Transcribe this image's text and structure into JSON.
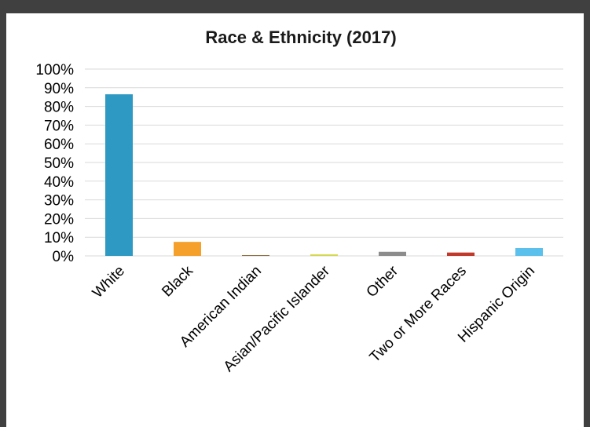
{
  "chart_data": {
    "type": "bar",
    "title": "Race & Ethnicity (2017)",
    "xlabel": "",
    "ylabel": "",
    "categories": [
      "White",
      "Black",
      "American Indian",
      "Asian/Pacific Islander",
      "Other",
      "Two or More Races",
      "Hispanic Origin"
    ],
    "values": [
      86.5,
      7.5,
      0.4,
      0.8,
      2.2,
      1.8,
      4.2
    ],
    "colors": [
      "#2e9ac4",
      "#f5a02a",
      "#8a6a3a",
      "#d6d84a",
      "#8c8c8c",
      "#c0392b",
      "#5bc1ec"
    ],
    "ylim": [
      0,
      100
    ],
    "yticks": [
      "0%",
      "10%",
      "20%",
      "30%",
      "40%",
      "50%",
      "60%",
      "70%",
      "80%",
      "90%",
      "100%"
    ],
    "grid": true,
    "legend": "none"
  }
}
